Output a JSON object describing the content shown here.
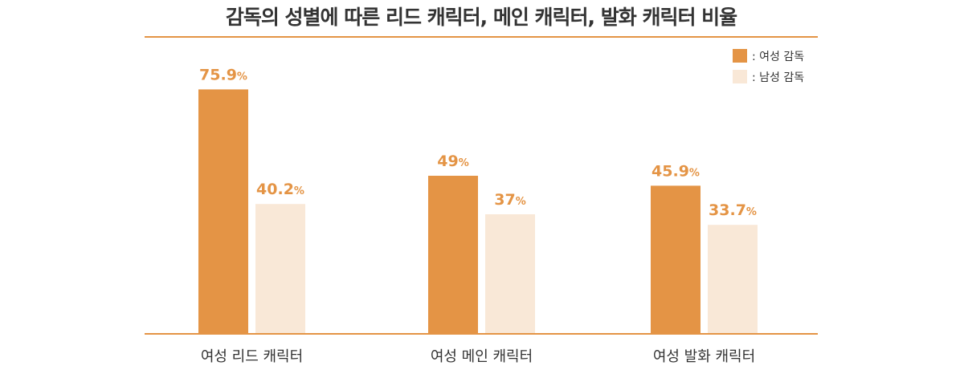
{
  "colors": {
    "female": "#e49445",
    "male": "#f9e8d7",
    "axis": "#e49445",
    "value_label": "#e49445",
    "text": "#333333"
  },
  "chart_data": {
    "type": "bar",
    "title": "감독의 성별에 따른 리드 캐릭터, 메인 캐릭터, 발화 캐릭터 비율",
    "categories": [
      "여성 리드 캐릭터",
      "여성 메인 캐릭터",
      "여성 발화 캐릭터"
    ],
    "series": [
      {
        "name": ": 여성 감독",
        "values": [
          75.9,
          49,
          45.9
        ]
      },
      {
        "name": ": 남성 감독",
        "values": [
          40.2,
          37,
          33.7
        ]
      }
    ],
    "value_labels": [
      [
        "75.9",
        "49",
        "45.9"
      ],
      [
        "40.2",
        "37",
        "33.7"
      ]
    ],
    "unit": "%",
    "ylim": [
      0,
      100
    ],
    "legend": "top-right",
    "grid": false
  }
}
